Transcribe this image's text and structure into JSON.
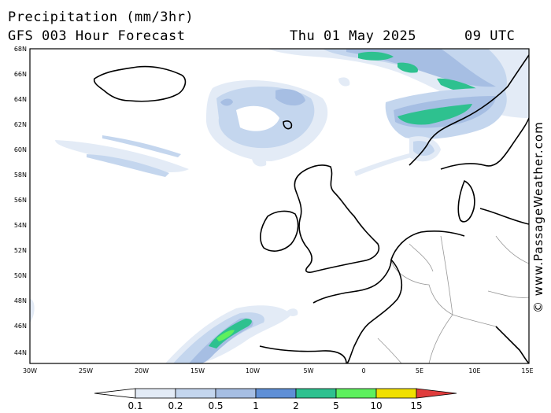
{
  "title": {
    "line1": "Precipitation (mm/3hr)",
    "line2": "GFS 003 Hour Forecast",
    "date": "Thu 01 May 2025",
    "time": "09 UTC"
  },
  "credit": "© www.PassageWeather.com",
  "map": {
    "lat_labels": [
      "68N",
      "66N",
      "64N",
      "62N",
      "60N",
      "58N",
      "56N",
      "54N",
      "52N",
      "50N",
      "48N",
      "46N",
      "44N"
    ],
    "lon_labels": [
      "30W",
      "25W",
      "20W",
      "15W",
      "10W",
      "5W",
      "0",
      "5E",
      "10E",
      "15E"
    ],
    "background_color": "#ffffff",
    "coastline_color": "#000000",
    "border_color": "#999999"
  },
  "legend": {
    "thresholds": [
      "0.1",
      "0.2",
      "0.5",
      "1",
      "2",
      "5",
      "10",
      "15"
    ],
    "colors": [
      "#ffffff",
      "#e3ebf6",
      "#c4d6ee",
      "#a6bee3",
      "#5f8fd6",
      "#2ec18f",
      "#5ef05e",
      "#f0e000",
      "#f08a00",
      "#e03c3c"
    ]
  }
}
